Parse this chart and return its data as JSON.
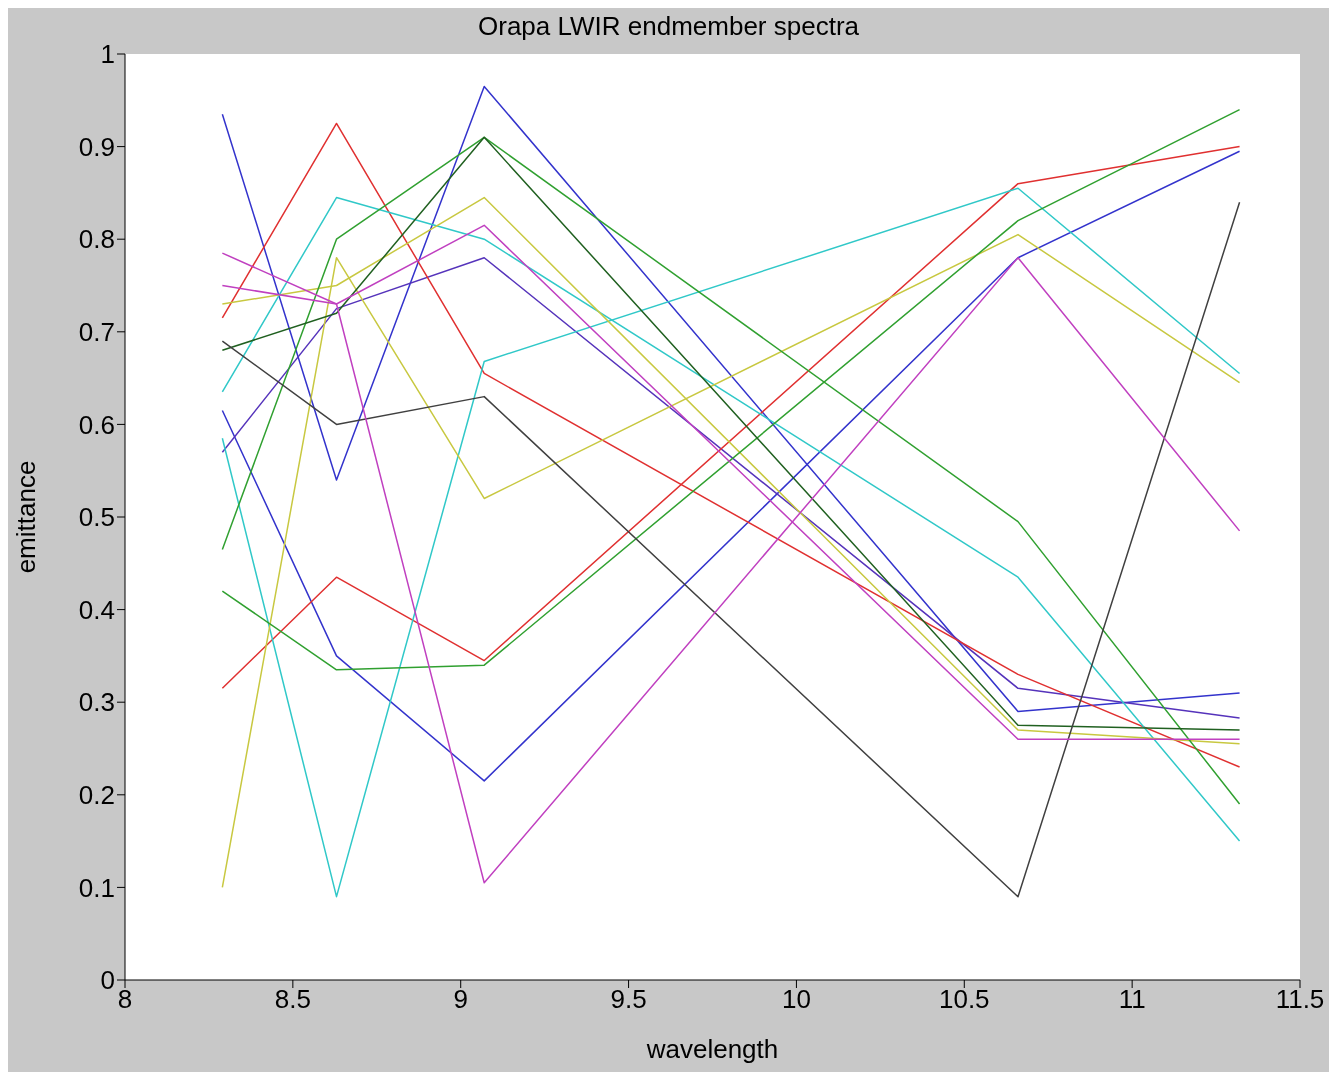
{
  "chart_data": {
    "type": "line",
    "title": "Orapa LWIR endmember spectra",
    "xlabel": "wavelength",
    "ylabel": "emittance",
    "x": [
      8.29,
      8.63,
      9.07,
      10.66,
      11.32
    ],
    "xlim": [
      8,
      11.5
    ],
    "xticks": [
      8,
      8.5,
      9,
      9.5,
      10,
      10.5,
      11,
      11.5
    ],
    "ylim": [
      0,
      1
    ],
    "yticks": [
      0,
      0.1,
      0.2,
      0.3,
      0.4,
      0.5,
      0.6,
      0.7,
      0.8,
      0.9,
      1
    ],
    "legend": false,
    "marker": "none",
    "line_style": "solid",
    "series": [
      {
        "color": "#3333cc",
        "values": [
          0.935,
          0.54,
          0.965,
          0.29,
          0.31
        ]
      },
      {
        "color": "#3333cc",
        "values": [
          0.615,
          0.35,
          0.215,
          0.78,
          0.895
        ]
      },
      {
        "color": "#5533bb",
        "values": [
          0.57,
          0.725,
          0.78,
          0.315,
          0.283
        ]
      },
      {
        "color": "#e03030",
        "values": [
          0.715,
          0.925,
          0.655,
          0.33,
          0.23
        ]
      },
      {
        "color": "#e03030",
        "values": [
          0.315,
          0.435,
          0.345,
          0.86,
          0.9
        ]
      },
      {
        "color": "#30c8c8",
        "values": [
          0.635,
          0.845,
          0.8,
          0.435,
          0.15
        ]
      },
      {
        "color": "#30c8c8",
        "values": [
          0.585,
          0.09,
          0.668,
          0.855,
          0.655
        ]
      },
      {
        "color": "#c8c840",
        "values": [
          0.1,
          0.78,
          0.52,
          0.805,
          0.645
        ]
      },
      {
        "color": "#c8c840",
        "values": [
          0.73,
          0.75,
          0.845,
          0.27,
          0.255
        ]
      },
      {
        "color": "#30a030",
        "values": [
          0.465,
          0.8,
          0.91,
          0.495,
          0.19
        ]
      },
      {
        "color": "#30a030",
        "values": [
          0.42,
          0.335,
          0.34,
          0.82,
          0.94
        ]
      },
      {
        "color": "#206020",
        "values": [
          0.68,
          0.72,
          0.91,
          0.275,
          0.27
        ]
      },
      {
        "color": "#404040",
        "values": [
          0.69,
          0.6,
          0.63,
          0.09,
          0.84
        ]
      },
      {
        "color": "#c040c0",
        "values": [
          0.785,
          0.73,
          0.105,
          0.78,
          0.485
        ]
      },
      {
        "color": "#c040c0",
        "values": [
          0.75,
          0.73,
          0.815,
          0.26,
          0.26
        ]
      }
    ]
  }
}
